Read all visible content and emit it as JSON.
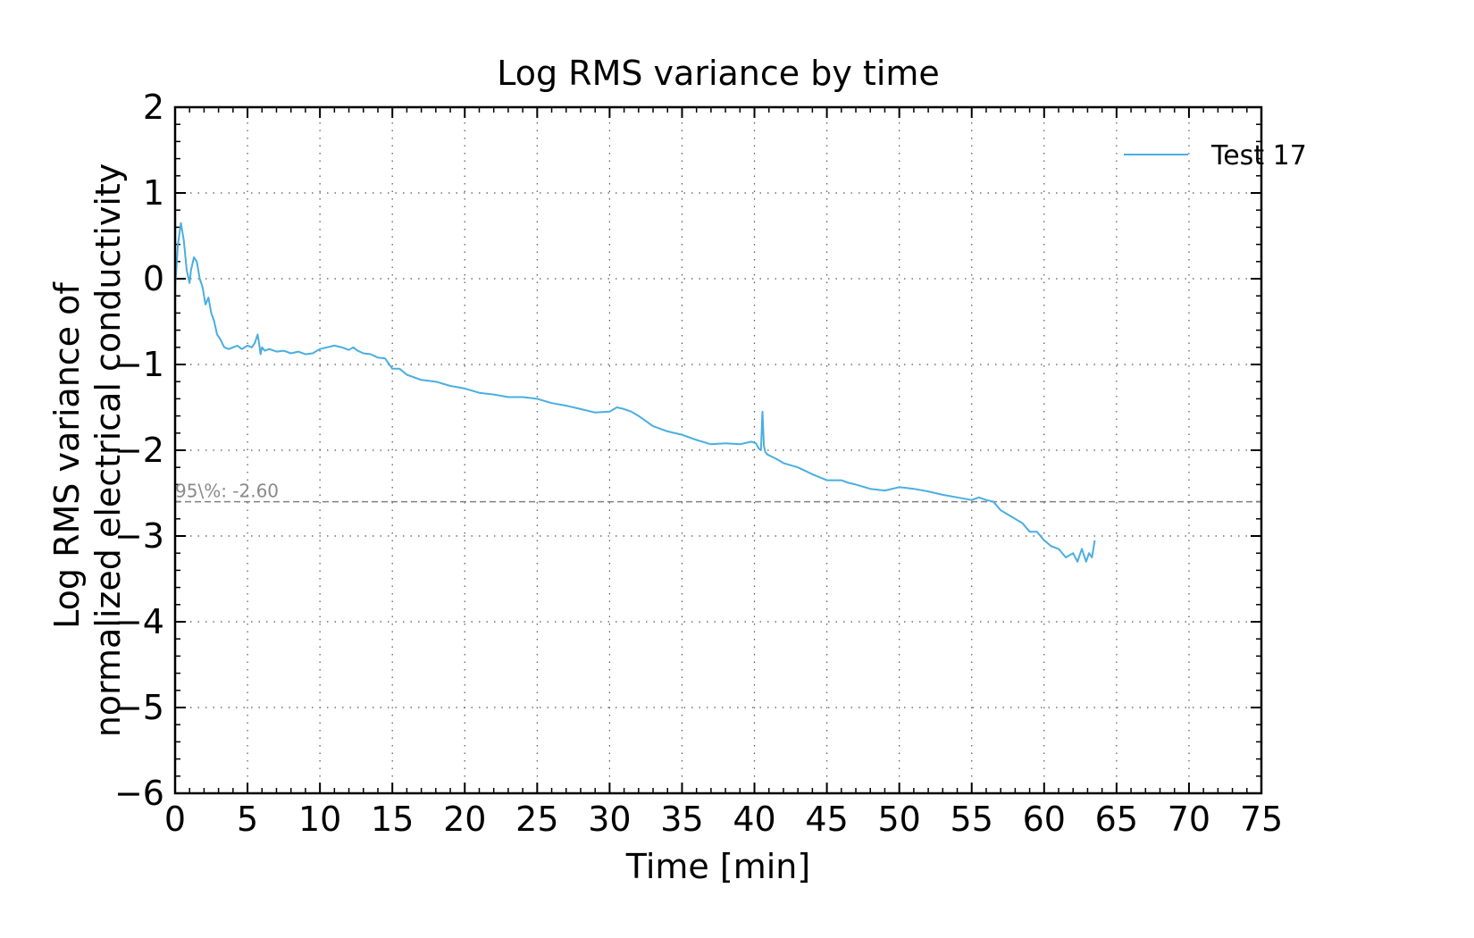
{
  "chart_data": {
    "type": "line",
    "title": "Log RMS variance by time",
    "xlabel": "Time [min]",
    "ylabel_lines": [
      "Log RMS variance of",
      "normalized electrical conductivity"
    ],
    "xlim": [
      0,
      75
    ],
    "ylim": [
      -6,
      2
    ],
    "xticks": [
      0,
      5,
      10,
      15,
      20,
      25,
      30,
      35,
      40,
      45,
      50,
      55,
      60,
      65,
      70,
      75
    ],
    "yticks": [
      -6,
      -5,
      -4,
      -3,
      -2,
      -1,
      0,
      1,
      2
    ],
    "grid": true,
    "legend_position": "top-right",
    "threshold": {
      "value": -2.6,
      "label": "95\\%: -2.60",
      "color": "#808080"
    },
    "series": [
      {
        "name": "Test 17",
        "color": "#4aaee0",
        "x": [
          0,
          0.2,
          0.4,
          0.6,
          0.8,
          1.0,
          1.1,
          1.3,
          1.5,
          1.7,
          1.9,
          2.1,
          2.3,
          2.5,
          2.7,
          2.9,
          3.1,
          3.4,
          3.7,
          4.0,
          4.3,
          4.6,
          5.0,
          5.3,
          5.5,
          5.7,
          5.8,
          5.9,
          6.0,
          6.2,
          6.5,
          7.0,
          7.5,
          8.0,
          8.5,
          9.0,
          9.5,
          10.0,
          10.5,
          11.0,
          11.5,
          12.0,
          12.3,
          12.6,
          13.0,
          13.5,
          14.0,
          14.5,
          15.0,
          15.5,
          16.0,
          17.0,
          18.0,
          19.0,
          20.0,
          21.0,
          22.0,
          23.0,
          24.0,
          25.0,
          26.0,
          27.0,
          28.0,
          29.0,
          30.0,
          30.5,
          31.0,
          31.5,
          32.0,
          33.0,
          34.0,
          35.0,
          36.0,
          37.0,
          38.0,
          39.0,
          39.8,
          40.1,
          40.3,
          40.45,
          40.55,
          40.65,
          40.75,
          40.9,
          41.5,
          42.0,
          43.0,
          44.0,
          45.0,
          46.0,
          46.5,
          47.0,
          48.0,
          49.0,
          50.0,
          51.0,
          52.0,
          53.0,
          54.0,
          55.0,
          55.5,
          56.0,
          56.5,
          57.0,
          57.5,
          58.0,
          58.5,
          59.0,
          59.5,
          60.0,
          60.5,
          61.0,
          61.5,
          62.0,
          62.3,
          62.6,
          62.9,
          63.1,
          63.3,
          63.5
        ],
        "y": [
          -0.1,
          0.4,
          0.65,
          0.45,
          0.1,
          -0.05,
          0.1,
          0.25,
          0.2,
          0.0,
          -0.1,
          -0.3,
          -0.22,
          -0.4,
          -0.5,
          -0.65,
          -0.7,
          -0.8,
          -0.82,
          -0.8,
          -0.78,
          -0.82,
          -0.78,
          -0.8,
          -0.75,
          -0.65,
          -0.75,
          -0.88,
          -0.8,
          -0.84,
          -0.82,
          -0.85,
          -0.84,
          -0.87,
          -0.85,
          -0.88,
          -0.87,
          -0.82,
          -0.8,
          -0.78,
          -0.8,
          -0.83,
          -0.8,
          -0.84,
          -0.87,
          -0.88,
          -0.92,
          -0.93,
          -1.05,
          -1.05,
          -1.12,
          -1.18,
          -1.2,
          -1.25,
          -1.28,
          -1.33,
          -1.35,
          -1.38,
          -1.38,
          -1.4,
          -1.45,
          -1.48,
          -1.52,
          -1.56,
          -1.55,
          -1.5,
          -1.52,
          -1.55,
          -1.6,
          -1.72,
          -1.78,
          -1.82,
          -1.88,
          -1.93,
          -1.92,
          -1.93,
          -1.9,
          -1.92,
          -1.98,
          -2.0,
          -1.55,
          -1.95,
          -2.02,
          -2.05,
          -2.1,
          -2.15,
          -2.2,
          -2.28,
          -2.35,
          -2.35,
          -2.38,
          -2.4,
          -2.45,
          -2.47,
          -2.43,
          -2.45,
          -2.48,
          -2.52,
          -2.55,
          -2.58,
          -2.55,
          -2.58,
          -2.6,
          -2.7,
          -2.75,
          -2.8,
          -2.85,
          -2.95,
          -2.95,
          -3.05,
          -3.12,
          -3.15,
          -3.25,
          -3.2,
          -3.3,
          -3.15,
          -3.3,
          -3.2,
          -3.25,
          -3.05
        ]
      }
    ]
  }
}
